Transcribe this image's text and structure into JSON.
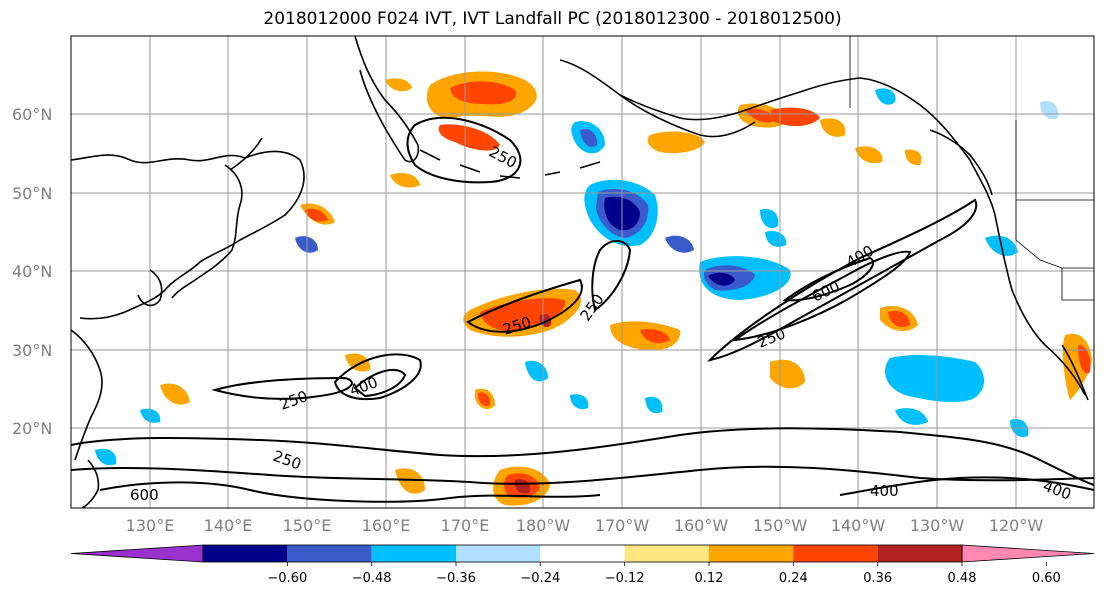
{
  "title": "2018012000 F024 IVT, IVT Landfall PC (2018012300 - 2018012500)",
  "lat_labels": [
    "60°N",
    "50°N",
    "40°N",
    "30°N",
    "20°N"
  ],
  "lon_labels": [
    "130°E",
    "140°E",
    "150°E",
    "160°E",
    "170°E",
    "180°W",
    "170°W",
    "160°W",
    "150°W",
    "140°W",
    "130°W",
    "120°W"
  ],
  "contour_labels": [
    "250",
    "250",
    "250",
    "250",
    "250",
    "250",
    "400",
    "400",
    "400",
    "400",
    "600",
    "600"
  ],
  "colorbar": {
    "tick_labels": [
      "−0.60",
      "−0.48",
      "−0.36",
      "−0.24",
      "−0.12",
      "0.12",
      "0.24",
      "0.36",
      "0.48",
      "0.60"
    ],
    "colors": [
      "#9932cc",
      "#00008b",
      "#3a5bcc",
      "#00bfff",
      "#b0e0ff",
      "#ffffff",
      "#ffe680",
      "#ffa500",
      "#ff4500",
      "#b22222",
      "#ff88b0"
    ]
  }
}
